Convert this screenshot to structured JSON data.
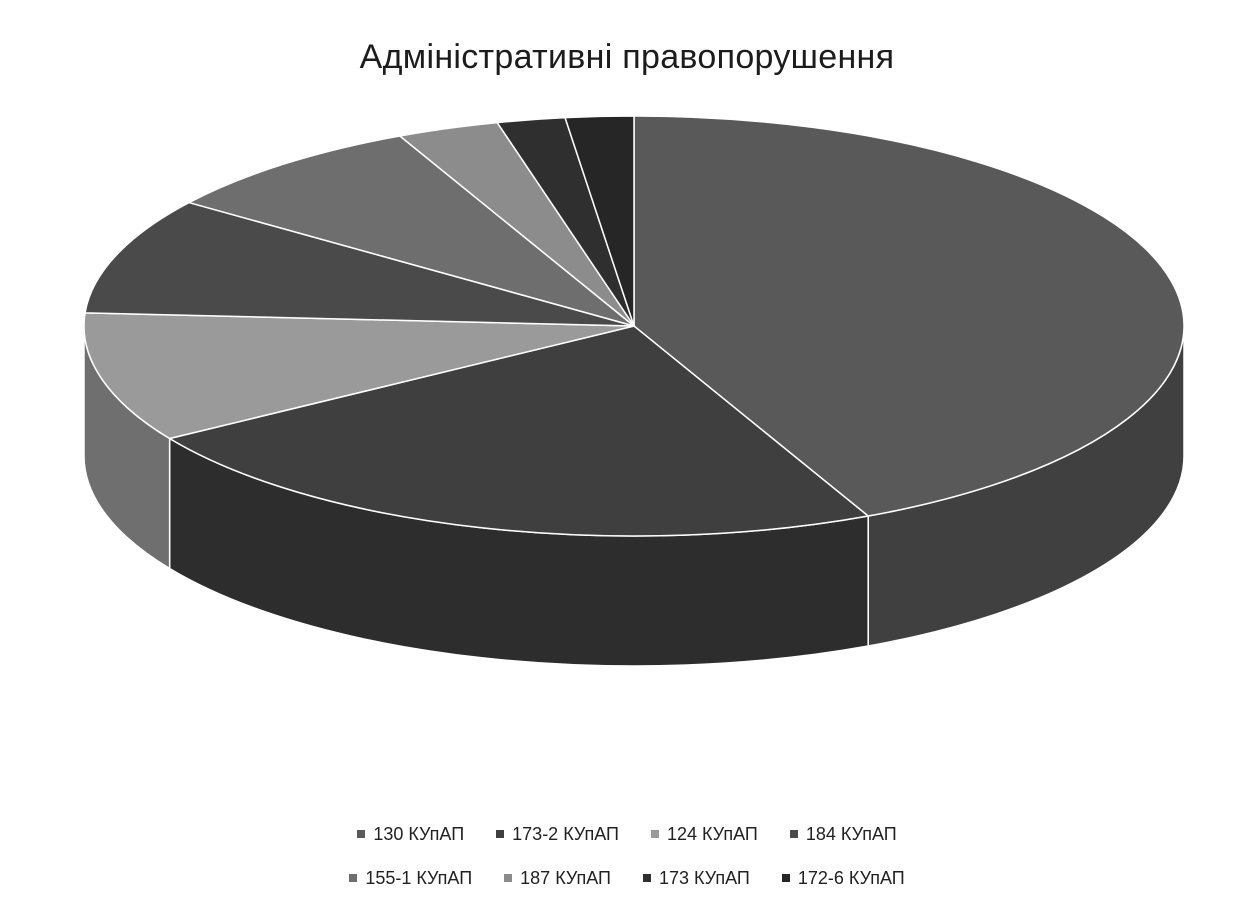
{
  "chart_data": {
    "type": "pie",
    "title": "Адміністративні правопорушення",
    "categories": [
      "130 КУпАП",
      "173-2 КУпАП",
      "124 КУпАП",
      "184 КУпАП",
      "155-1 КУпАП",
      "187 КУпАП",
      "173 КУпАП",
      "172-6 КУпАП"
    ],
    "values": [
      43,
      23,
      10,
      9,
      8,
      3,
      2,
      2
    ],
    "colors": [
      "#595959",
      "#3f3f3f",
      "#9a9a9a",
      "#4a4a4a",
      "#6e6e6e",
      "#8c8c8c",
      "#2f2f2f",
      "#262626"
    ],
    "legend_position": "bottom",
    "legend_rows": [
      [
        "130 КУпАП",
        "173-2 КУпАП",
        "124 КУпАП",
        "184 КУпАП"
      ],
      [
        "155-1 КУпАП",
        "187 КУпАП",
        "173 КУпАП",
        "172-6 КУпАП"
      ]
    ]
  }
}
